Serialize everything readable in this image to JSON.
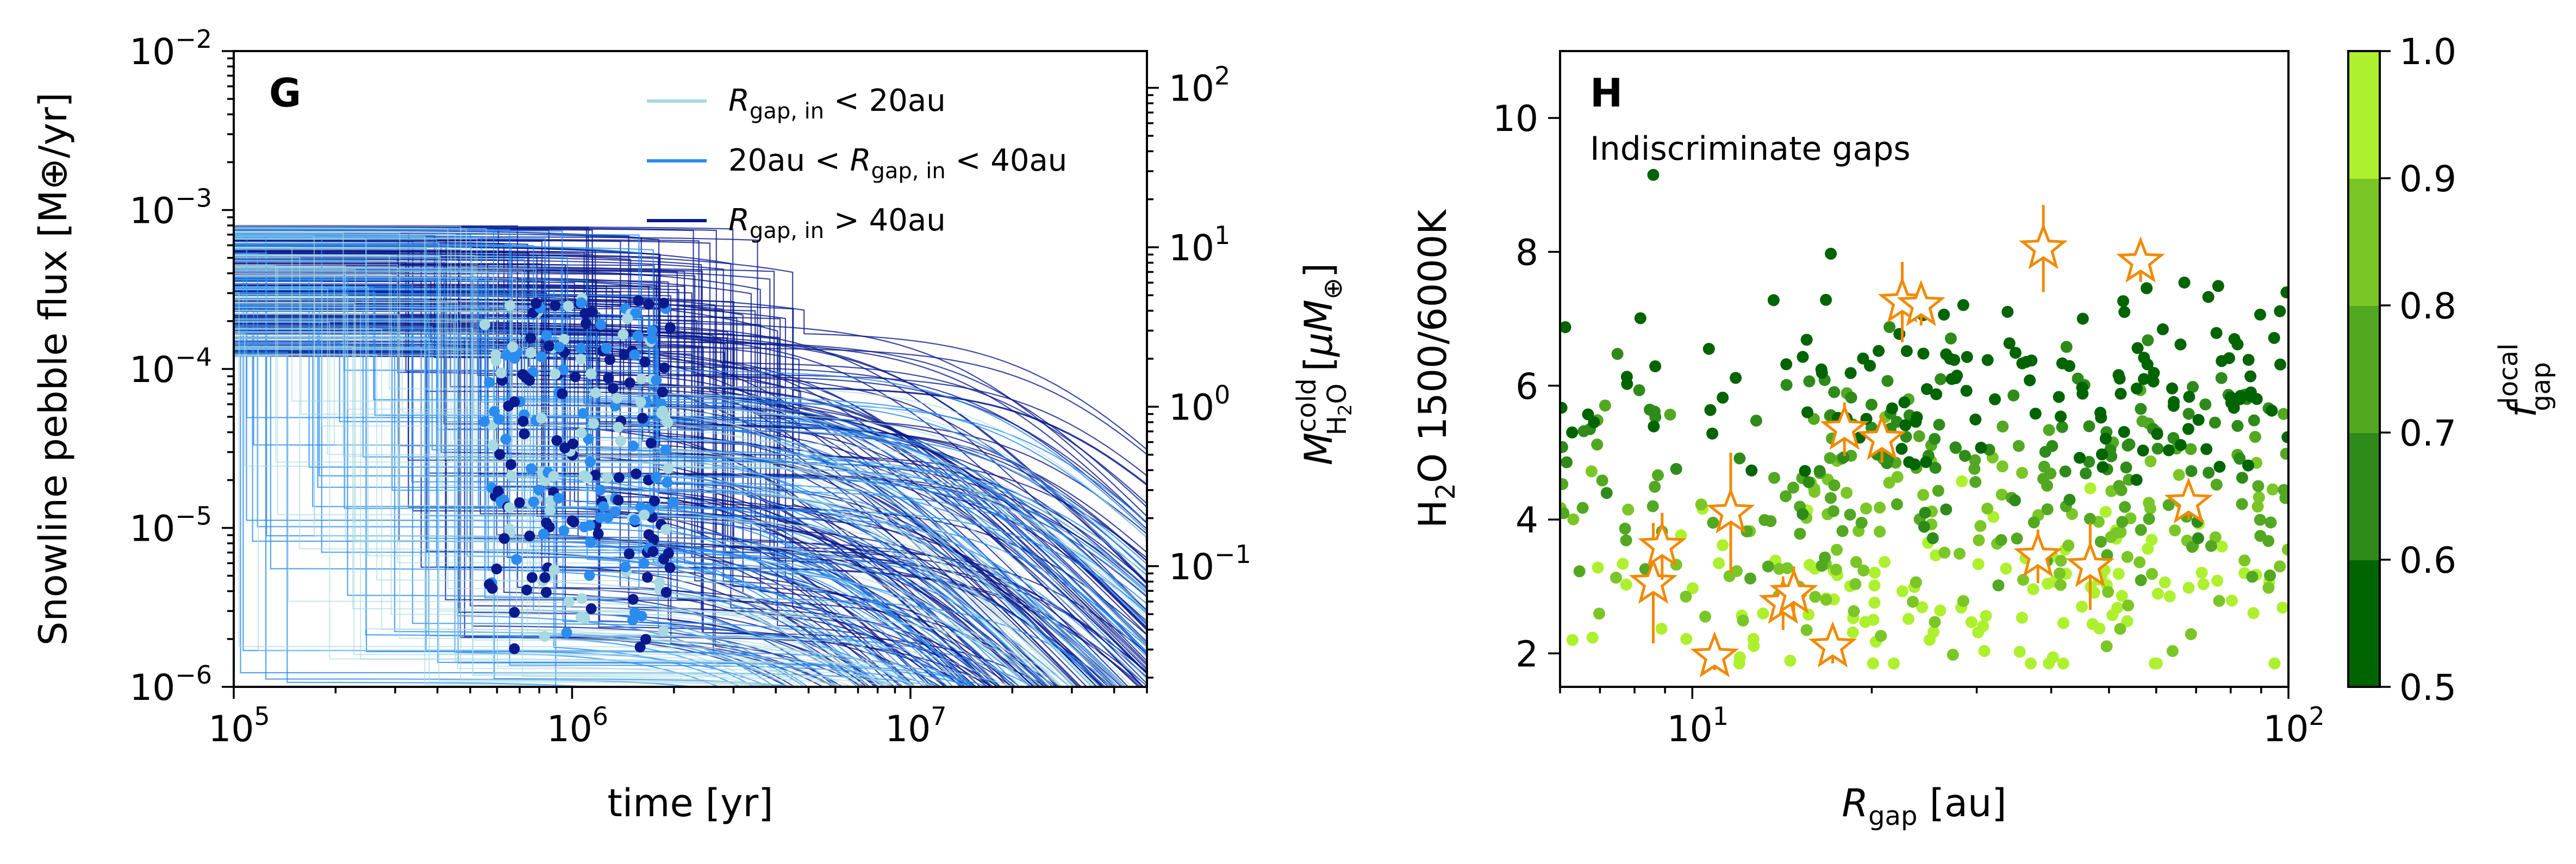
{
  "figure": {
    "panels": [
      {
        "letter": "G",
        "xlabel": "time [yr]",
        "ylabel": "Snowline pebble flux [M⊕/yr]",
        "ylabel_right": "M^cold_H2O [μM⊕]",
        "legend": [
          {
            "label": "R_gap,in < 20au",
            "color": "#a8d8e0"
          },
          {
            "label": "20au < R_gap,in < 40au",
            "color": "#2b8cf0"
          },
          {
            "label": "R_gap,in > 40au",
            "color": "#0a1a8c"
          }
        ]
      },
      {
        "letter": "H",
        "annotation": "Indiscriminate gaps",
        "xlabel": "R_gap [au]",
        "ylabel": "H2O 1500/6000K",
        "colorbar_label": "f_gap^local",
        "colorbar_ticks": [
          "0.5",
          "0.6",
          "0.7",
          "0.8",
          "0.9",
          "1.0"
        ],
        "colorbar_colors": [
          "#006400",
          "#238b18",
          "#4aa81e",
          "#74c423",
          "#9ad928",
          "#b9f530"
        ]
      }
    ]
  },
  "chart_data": [
    {
      "type": "line",
      "title": "G",
      "xscale": "log",
      "yscale": "log",
      "xlim": [
        100000,
        50000000
      ],
      "ylim": [
        1e-06,
        0.01
      ],
      "xticks": [
        "10^5",
        "10^6",
        "10^7"
      ],
      "yticks": [
        "10^-6",
        "10^-5",
        "10^-4",
        "10^-3",
        "10^-2"
      ],
      "secondary_y": {
        "label": "M^cold_H2O [μM⊕]",
        "ticks": [
          "10^-1",
          "10^0",
          "10^1",
          "10^2"
        ],
        "values": [
          0.1,
          1,
          10,
          100
        ]
      },
      "series": [
        {
          "name": "R_gap,in < 20au",
          "color": "#a8d8e0",
          "n_tracks": 70,
          "gap_time_range_yr": [
            100000,
            800000
          ],
          "initial_flux_range": [
            0.00012,
            0.0008
          ],
          "decay_timescale_range_yr": [
            5000000,
            30000000
          ],
          "post_gap_flux_range": [
            1e-06,
            8e-05
          ]
        },
        {
          "name": "20au < R_gap,in < 40au",
          "color": "#2b8cf0",
          "n_tracks": 80,
          "gap_time_range_yr": [
            100000,
            2000000
          ],
          "initial_flux_range": [
            0.00012,
            0.0008
          ],
          "decay_timescale_range_yr": [
            5000000,
            30000000
          ],
          "post_gap_flux_range": [
            1e-06,
            0.0001
          ]
        },
        {
          "name": "R_gap,in > 40au",
          "color": "#0a1a8c",
          "n_tracks": 150,
          "gap_time_range_yr": [
            300000,
            5000000
          ],
          "initial_flux_range": [
            0.00012,
            0.0008
          ],
          "decay_timescale_range_yr": [
            5000000,
            30000000
          ],
          "post_gap_flux_range": [
            2e-06,
            0.0002
          ]
        }
      ],
      "markers": {
        "time_range_yr": [
          550000,
          2000000
        ],
        "flux_range": [
          1.7e-06,
          0.0003
        ],
        "count": 240,
        "colors": [
          "#a8d8e0",
          "#2b8cf0",
          "#0a1a8c"
        ]
      }
    },
    {
      "type": "scatter",
      "title": "H",
      "xscale": "log",
      "xlim": [
        6,
        100
      ],
      "ylim": [
        1.5,
        11
      ],
      "xticks": [
        "10^1",
        "10^2"
      ],
      "yticks": [
        2,
        4,
        6,
        8,
        10
      ],
      "color_scale": {
        "label": "f_gap^local",
        "range": [
          0.5,
          1.0
        ]
      },
      "points": {
        "count": 560,
        "x_range_au": [
          6,
          100
        ],
        "relation": "higher f_gap^local lies at lower H2O ratio (~2–4); lower f_gap^local spans ~3–8",
        "outlier": {
          "x": 8.6,
          "y": 9.15
        }
      },
      "observations": [
        {
          "x": 8.6,
          "y": 3.05,
          "err": 0.9
        },
        {
          "x": 8.9,
          "y": 3.6,
          "err": 0.5
        },
        {
          "x": 10.9,
          "y": 1.95,
          "err": 0.2
        },
        {
          "x": 11.6,
          "y": 4.1,
          "err": 0.9
        },
        {
          "x": 14.2,
          "y": 2.75,
          "err": 0.4
        },
        {
          "x": 14.8,
          "y": 2.9,
          "err": 0.4
        },
        {
          "x": 17.2,
          "y": 2.1,
          "err": 0.25
        },
        {
          "x": 18.0,
          "y": 5.35,
          "err": 0.4
        },
        {
          "x": 20.8,
          "y": 5.2,
          "err": 0.35
        },
        {
          "x": 22.5,
          "y": 7.25,
          "err": 0.6
        },
        {
          "x": 24.2,
          "y": 7.2,
          "err": 0.3
        },
        {
          "x": 38.0,
          "y": 3.45,
          "err": 0.4
        },
        {
          "x": 38.8,
          "y": 8.05,
          "err": 0.65
        },
        {
          "x": 46.5,
          "y": 3.3,
          "err": 0.65
        },
        {
          "x": 56.5,
          "y": 7.85,
          "err": 0.3
        },
        {
          "x": 68.0,
          "y": 4.25,
          "err": 0.25
        }
      ],
      "observations_color": "#f08a00"
    }
  ]
}
